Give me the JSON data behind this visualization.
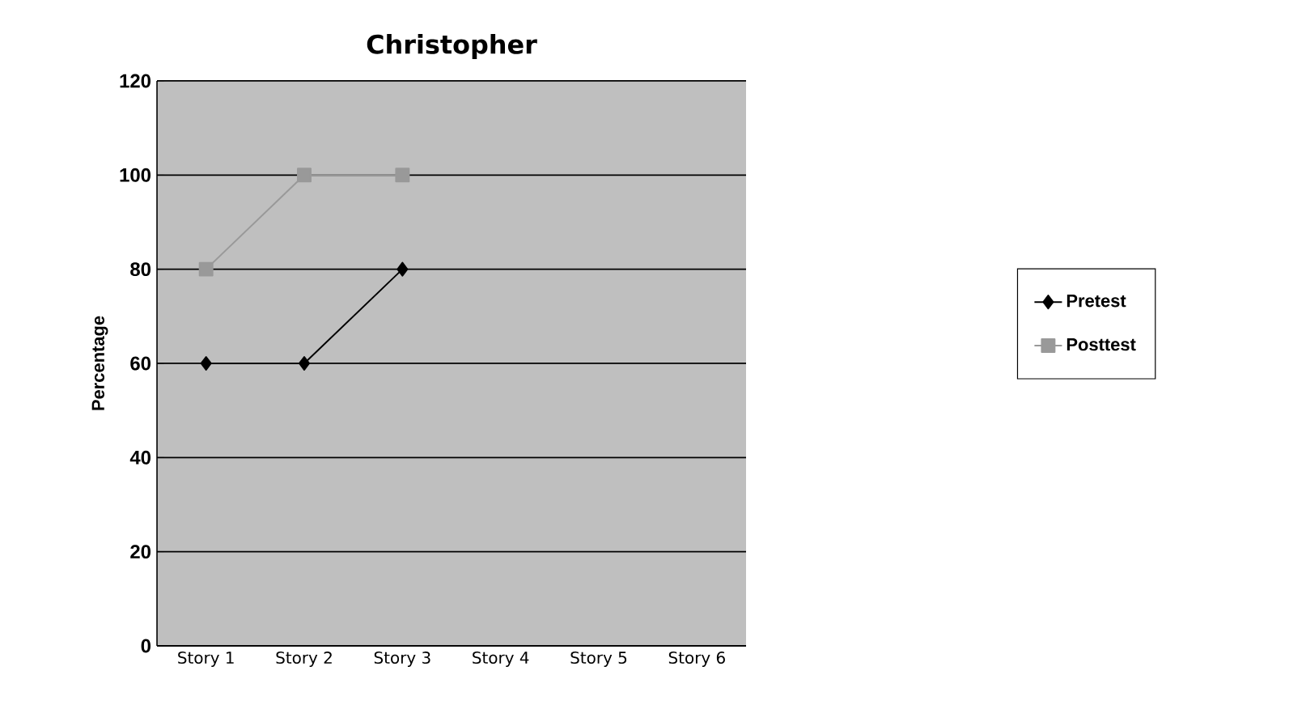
{
  "chart_data": {
    "type": "line",
    "title": "Christopher",
    "ylabel": "Percentage",
    "categories": [
      "Story 1",
      "Story 2",
      "Story 3",
      "Story 4",
      "Story 5",
      "Story 6"
    ],
    "series": [
      {
        "name": "Pretest",
        "color": "#000000",
        "marker": "diamond",
        "values": [
          60,
          60,
          80,
          null,
          null,
          null
        ]
      },
      {
        "name": "Posttest",
        "color": "#999999",
        "marker": "square",
        "values": [
          80,
          100,
          100,
          null,
          null,
          null
        ]
      }
    ],
    "ylim": [
      0,
      120
    ],
    "yticks": [
      0,
      20,
      40,
      60,
      80,
      100,
      120
    ],
    "grid": "y",
    "legend": "right"
  }
}
